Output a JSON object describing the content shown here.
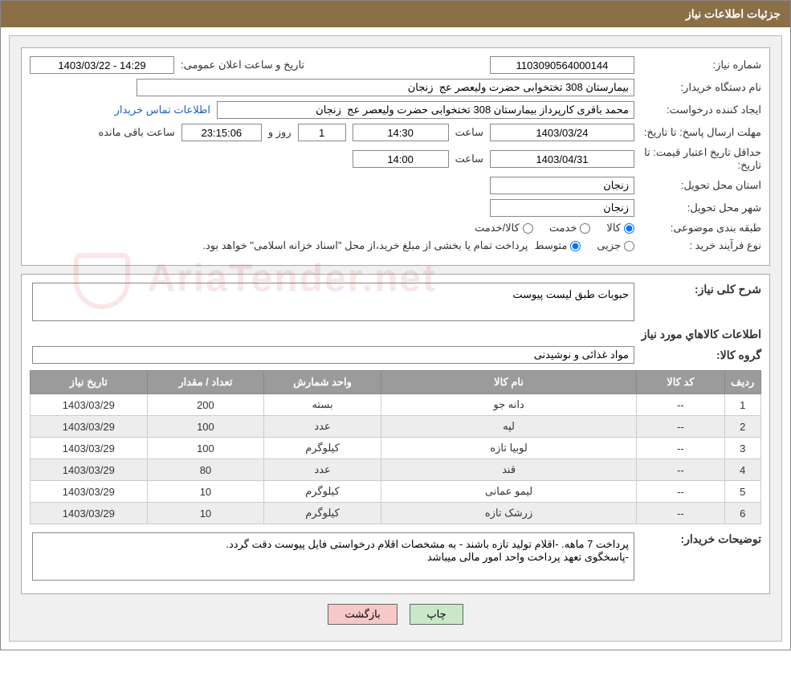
{
  "header": {
    "title": "جزئیات اطلاعات نیاز"
  },
  "fields": {
    "need_no_label": "شماره نیاز:",
    "need_no": "1103090564000144",
    "announce_label": "تاریخ و ساعت اعلان عمومی:",
    "announce_value": "14:29 - 1403/03/22",
    "buyer_org_label": "نام دستگاه خریدار:",
    "buyer_org": "بیمارستان 308 تختخوابی حضرت ولیعصر عج  زنجان",
    "requester_label": "ایجاد کننده درخواست:",
    "requester": "محمد باقری کارپرداز بیمارستان 308 تختخوابی حضرت ولیعصر عج  زنجان",
    "contact_link": "اطلاعات تماس خریدار",
    "reply_deadline_label": "مهلت ارسال پاسخ:",
    "until_label": "تا تاریخ:",
    "reply_date": "1403/03/24",
    "hour_label": "ساعت",
    "reply_time": "14:30",
    "days_label": "روز و",
    "days_value": "1",
    "remaining_time": "23:15:06",
    "remaining_label": "ساعت باقی مانده",
    "price_valid_label": "حداقل تاریخ اعتبار قیمت:",
    "price_valid_date": "1403/04/31",
    "price_valid_time": "14:00",
    "province_label": "استان محل تحویل:",
    "province": "زنجان",
    "city_label": "شهر محل تحویل:",
    "city": "زنجان",
    "category_label": "طبقه بندی موضوعی:",
    "cat_goods": "کالا",
    "cat_service": "خدمت",
    "cat_goods_service": "کالا/خدمت",
    "purchase_type_label": "نوع فرآیند خرید :",
    "pt_partial": "جزیی",
    "pt_medium": "متوسط",
    "purchase_note": "پرداخت تمام یا بخشی از مبلغ خرید،از محل \"اسناد خزانه اسلامی\" خواهد بود."
  },
  "need_desc": {
    "label": "شرح کلی نیاز:",
    "text": "حبوبات طبق لیست پیوست"
  },
  "items_section": {
    "title": "اطلاعات کالاهاي مورد نیاز",
    "group_label": "گروه كالا:",
    "group_value": "مواد غذائی و نوشیدنی"
  },
  "table": {
    "headers": {
      "row": "ردیف",
      "code": "کد کالا",
      "name": "نام کالا",
      "unit": "واحد شمارش",
      "qty": "تعداد / مقدار",
      "date": "تاریخ نیاز"
    },
    "rows": [
      {
        "n": "1",
        "code": "--",
        "name": "دانه جو",
        "unit": "بسته",
        "qty": "200",
        "date": "1403/03/29"
      },
      {
        "n": "2",
        "code": "--",
        "name": "لپه",
        "unit": "عدد",
        "qty": "100",
        "date": "1403/03/29"
      },
      {
        "n": "3",
        "code": "--",
        "name": "لوبیا تازه",
        "unit": "کیلوگرم",
        "qty": "100",
        "date": "1403/03/29"
      },
      {
        "n": "4",
        "code": "--",
        "name": "قند",
        "unit": "عدد",
        "qty": "80",
        "date": "1403/03/29"
      },
      {
        "n": "5",
        "code": "--",
        "name": "لیمو عمانی",
        "unit": "کیلوگرم",
        "qty": "10",
        "date": "1403/03/29"
      },
      {
        "n": "6",
        "code": "--",
        "name": "زرشک تازه",
        "unit": "کیلوگرم",
        "qty": "10",
        "date": "1403/03/29"
      }
    ]
  },
  "buyer_notes": {
    "label": "توضیحات خریدار:",
    "text": "پرداخت 7 ماهه. -اقلام تولید تازه باشند - به مشخصات اقلام درخواستی فایل پیوست دقت گردد.\n-پاسخگوی تعهد پرداخت واحد امور مالی میباشد"
  },
  "buttons": {
    "print": "چاپ",
    "back": "بازگشت"
  },
  "watermark": "AriaTender.net",
  "colors": {
    "header_bg": "#8b6f47",
    "panel_bg": "#f0f0f0",
    "th_bg": "#9b9b9b",
    "row_alt": "#ededed",
    "link": "#2060c0",
    "btn_print": "#c8e8c8",
    "btn_back": "#f6c8c8"
  }
}
